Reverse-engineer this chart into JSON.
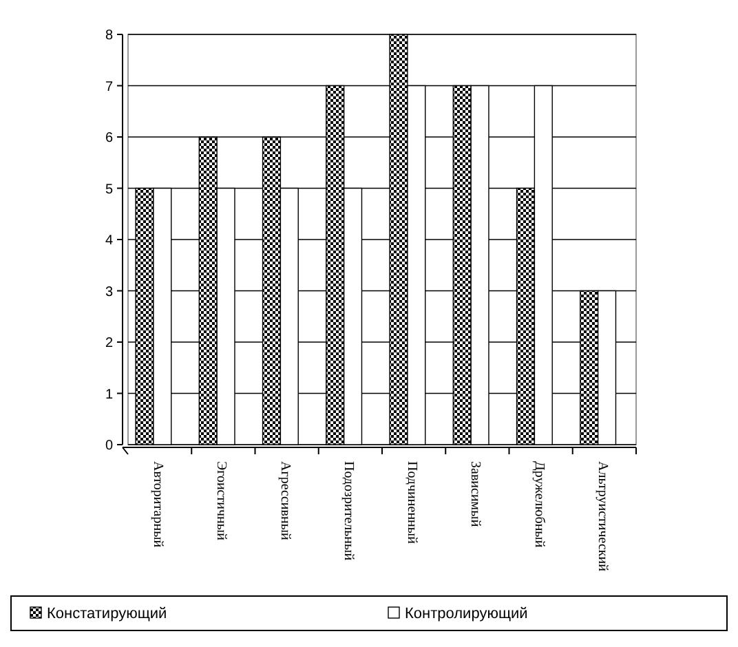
{
  "chart_data": {
    "type": "bar",
    "categories": [
      "Авторитарный",
      "Эгоистичный",
      "Агрессивный",
      "Подозрительный",
      "Подчиненный",
      "Зависимый",
      "Дружелюбный",
      "Альтруистический"
    ],
    "series": [
      {
        "name": "Констатирующий",
        "color": "#000000",
        "values": [
          5,
          6,
          6,
          7,
          8,
          7,
          5,
          3
        ]
      },
      {
        "name": "Контролирующий",
        "color": "#ffffff",
        "values": [
          5,
          5,
          5,
          5,
          7,
          7,
          7,
          3
        ]
      }
    ],
    "ylim": [
      0,
      8
    ],
    "yticks": [
      0,
      1,
      2,
      3,
      4,
      5,
      6,
      7,
      8
    ],
    "grid": "y",
    "legend": "bottom"
  }
}
